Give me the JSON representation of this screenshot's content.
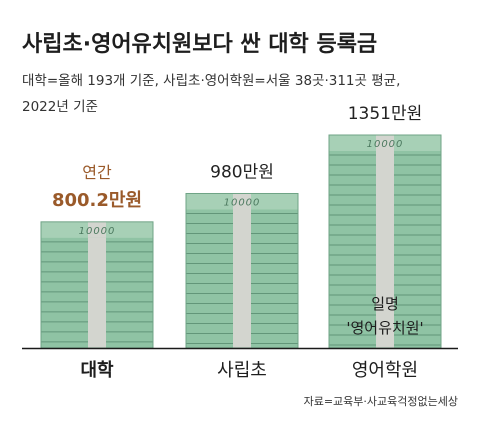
{
  "header": {
    "title": "사립초·영어유치원보다 싼 대학 등록금",
    "subtitle_line1": "대학=올해 193개 기준, 사립초·영어학원=서울 38곳·311곳 평균,",
    "subtitle_line2": "2022년 기준"
  },
  "source": "자료=교육부·사교육걱정없는세상",
  "colors": {
    "money_face": "#8fc3a4",
    "money_edge": "#3e7257",
    "money_band": "#d3d5cf",
    "highlight_text": "#9a5a2a",
    "base_line": "#1a1a1a"
  },
  "chart_data": {
    "type": "bar",
    "unit": "만원",
    "categories": [
      "대학",
      "사립초",
      "영어학원"
    ],
    "values": [
      800.2,
      980,
      1351
    ],
    "value_labels": [
      "800.2만원",
      "980만원",
      "1351만원"
    ],
    "annotations": {
      "university_prefix": "연간",
      "english_academy_note_line1": "일명",
      "english_academy_note_line2": "'영어유치원'"
    },
    "stack_mark_text": "10000",
    "ylim": [
      0,
      1351
    ]
  }
}
